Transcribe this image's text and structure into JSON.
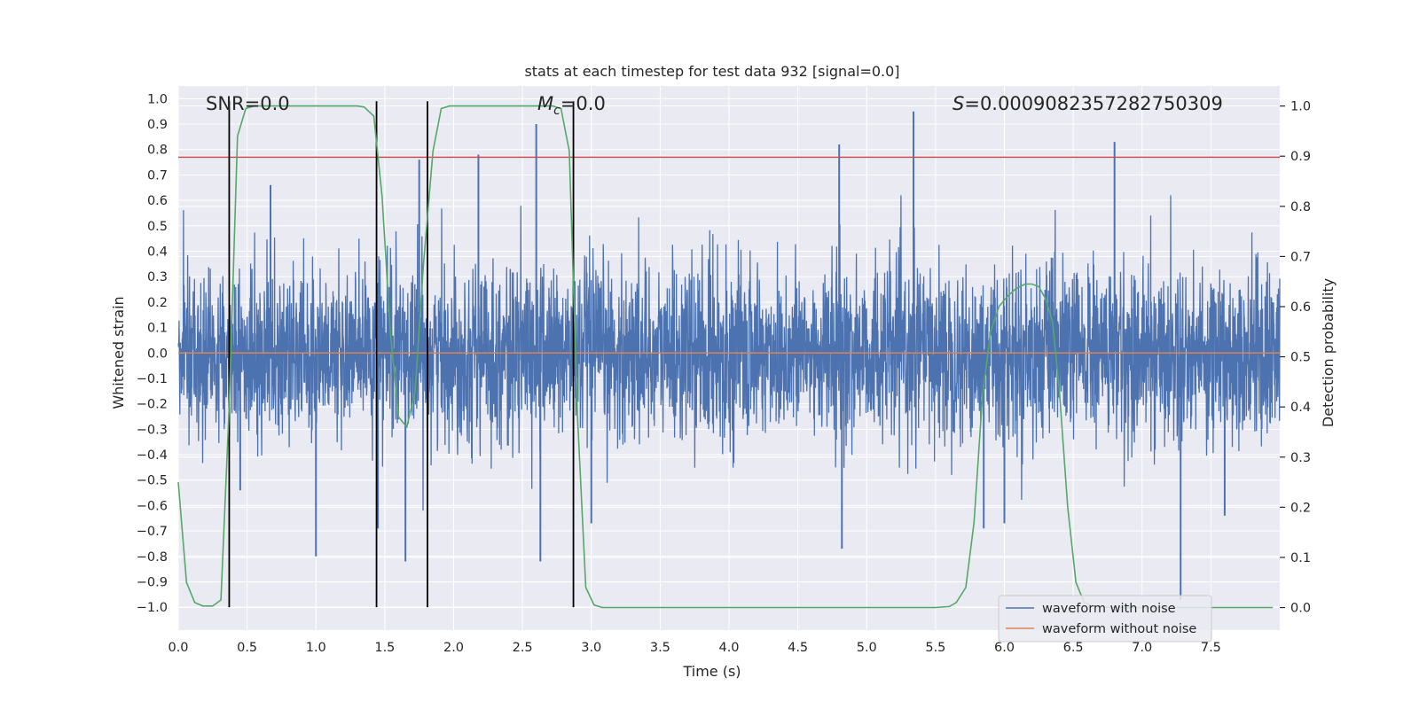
{
  "chart_data": {
    "type": "line",
    "title": "stats at each timestep for test data 932 [signal=0.0]",
    "xlabel": "Time (s)",
    "ylabel_left": "Whitened strain",
    "ylabel_right": "Detection probability",
    "xlim": [
      0.0,
      8.0
    ],
    "ylim_left": [
      -1.09,
      1.05
    ],
    "ylim_right": [
      -0.045,
      1.04
    ],
    "xticks": [
      "0.0",
      "0.5",
      "1.0",
      "1.5",
      "2.0",
      "2.5",
      "3.0",
      "3.5",
      "4.0",
      "4.5",
      "5.0",
      "5.5",
      "6.0",
      "6.5",
      "7.0",
      "7.5"
    ],
    "xtick_values": [
      0.0,
      0.5,
      1.0,
      1.5,
      2.0,
      2.5,
      3.0,
      3.5,
      4.0,
      4.5,
      5.0,
      5.5,
      6.0,
      6.5,
      7.0,
      7.5
    ],
    "yticks_left": [
      "1.0",
      "0.9",
      "0.8",
      "0.7",
      "0.6",
      "0.5",
      "0.4",
      "0.3",
      "0.2",
      "0.1",
      "0.0",
      "−0.1",
      "−0.2",
      "−0.3",
      "−0.4",
      "−0.5",
      "−0.6",
      "−0.7",
      "−0.8",
      "−0.9",
      "−1.0"
    ],
    "ytick_values_left": [
      1.0,
      0.9,
      0.8,
      0.7,
      0.6,
      0.5,
      0.4,
      0.3,
      0.2,
      0.1,
      0.0,
      -0.1,
      -0.2,
      -0.3,
      -0.4,
      -0.5,
      -0.6,
      -0.7,
      -0.8,
      -0.9,
      -1.0
    ],
    "yticks_right": [
      "1.0",
      "0.9",
      "0.8",
      "0.7",
      "0.6",
      "0.5",
      "0.4",
      "0.3",
      "0.2",
      "0.1",
      "0.0"
    ],
    "ytick_values_right": [
      1.0,
      0.9,
      0.8,
      0.7,
      0.6,
      0.5,
      0.4,
      0.3,
      0.2,
      0.1,
      0.0
    ],
    "annotations": {
      "snr": "SNR=0.0",
      "mc_symbol": "M",
      "mc_subscript": "c",
      "mc_value": "=0.0",
      "s_symbol": "S",
      "s_value": "=0.0009082357282750309"
    },
    "legend": {
      "placement": "lower-right",
      "entries": [
        "waveform with noise",
        "waveform without noise"
      ]
    },
    "colors": {
      "noise": "#4c72b0",
      "clean": "#dd8452",
      "probability": "#55a868",
      "threshold": "#c44e52",
      "vlines": "#000000",
      "axes_bg": "#eaeaf2",
      "grid": "#ffffff"
    },
    "series": [
      {
        "name": "waveform with noise",
        "axis": "left",
        "style": "dense noise",
        "noise_std": 0.17,
        "spikes": [
          {
            "x": 0.45,
            "y": -0.54
          },
          {
            "x": 0.67,
            "y": 0.66
          },
          {
            "x": 1.0,
            "y": -0.8
          },
          {
            "x": 1.45,
            "y": -0.69
          },
          {
            "x": 1.65,
            "y": -0.82
          },
          {
            "x": 1.75,
            "y": 0.76
          },
          {
            "x": 2.18,
            "y": 0.78
          },
          {
            "x": 2.6,
            "y": 0.9
          },
          {
            "x": 2.63,
            "y": -0.82
          },
          {
            "x": 3.0,
            "y": -0.67
          },
          {
            "x": 4.8,
            "y": 0.82
          },
          {
            "x": 4.82,
            "y": -0.77
          },
          {
            "x": 5.34,
            "y": 0.95
          },
          {
            "x": 5.85,
            "y": -0.69
          },
          {
            "x": 6.0,
            "y": -0.67
          },
          {
            "x": 6.8,
            "y": 0.83
          },
          {
            "x": 7.28,
            "y": -0.97
          },
          {
            "x": 7.6,
            "y": -0.64
          }
        ]
      },
      {
        "name": "waveform without noise",
        "axis": "left",
        "x": [
          0.0,
          8.0
        ],
        "y": [
          0.0,
          0.0
        ]
      },
      {
        "name": "detection probability",
        "axis": "right",
        "x": [
          0.0,
          0.06,
          0.12,
          0.18,
          0.25,
          0.31,
          0.37,
          0.43,
          0.49,
          0.55,
          1.3,
          1.35,
          1.42,
          1.48,
          1.54,
          1.6,
          1.66,
          1.72,
          1.78,
          1.85,
          1.91,
          1.97,
          2.03,
          2.72,
          2.78,
          2.84,
          2.9,
          2.96,
          3.02,
          3.08,
          3.3,
          5.5,
          5.6,
          5.65,
          5.72,
          5.78,
          5.84,
          5.9,
          5.96,
          6.02,
          6.08,
          6.15,
          6.2,
          6.25,
          6.3,
          6.35,
          6.4,
          6.46,
          6.52,
          6.58,
          6.64,
          6.7,
          7.0,
          7.95
        ],
        "y": [
          0.25,
          0.05,
          0.01,
          0.003,
          0.003,
          0.015,
          0.4,
          0.94,
          0.995,
          1.0,
          1.0,
          0.998,
          0.98,
          0.82,
          0.55,
          0.38,
          0.36,
          0.43,
          0.68,
          0.91,
          0.995,
          1.0,
          1.0,
          1.0,
          0.995,
          0.91,
          0.38,
          0.04,
          0.005,
          0.0,
          0.0,
          0.0,
          0.002,
          0.01,
          0.04,
          0.17,
          0.42,
          0.55,
          0.6,
          0.62,
          0.635,
          0.645,
          0.645,
          0.64,
          0.615,
          0.57,
          0.43,
          0.2,
          0.05,
          0.01,
          0.003,
          0.001,
          0.0,
          0.0
        ]
      }
    ],
    "threshold_line": {
      "axis": "left",
      "y": 0.77
    },
    "vertical_lines_x": [
      0.37,
      1.44,
      1.81,
      2.87
    ]
  }
}
